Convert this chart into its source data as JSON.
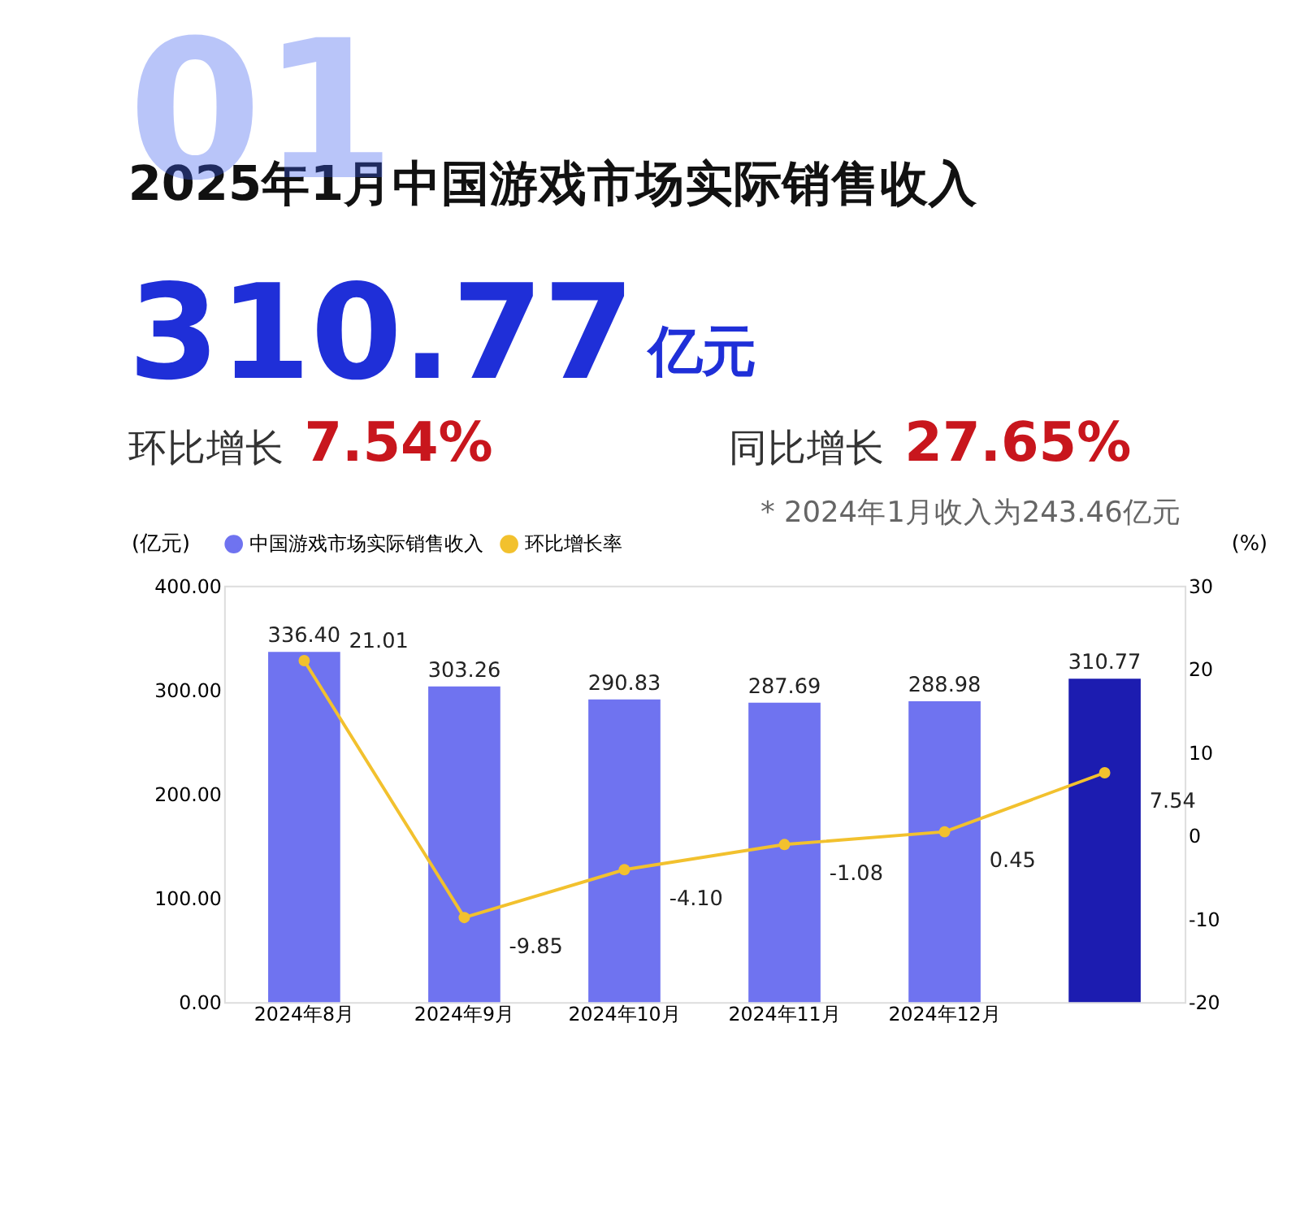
{
  "chart_data": {
    "type": "bar",
    "title": "2025年1月中国游戏市场实际销售收入",
    "annotations": [
      "01",
      "310.77",
      "亿元",
      "环比增长",
      "7.54%",
      "同比增长",
      "27.65%",
      "* 2024年1月收入为243.46亿元"
    ],
    "categories": [
      "2024年8月",
      "2024年9月",
      "2024年10月",
      "2024年11月",
      "2024年12月",
      null
    ],
    "series": [
      {
        "name": "中国游戏市场实际销售收入",
        "type": "bar",
        "color": "#6f73f0",
        "colors": [
          "#6f73f0",
          "#6f73f0",
          "#6f73f0",
          "#6f73f0",
          "#6f73f0",
          "#1c1cb0"
        ],
        "values": [
          336.4,
          303.26,
          290.83,
          287.69,
          288.98,
          310.77
        ],
        "value_labels": [
          "336.40",
          "303.26",
          "290.83",
          "287.69",
          "288.98",
          "310.77"
        ]
      },
      {
        "name": "环比增长率",
        "type": "line",
        "axis": "y2",
        "color": "#f2c12e",
        "values": [
          21.01,
          -9.85,
          -4.1,
          -1.08,
          0.45,
          7.54
        ],
        "value_labels": [
          "21.01",
          "-9.85",
          "-4.10",
          "-1.08",
          "0.45",
          "7.54"
        ]
      }
    ],
    "ylabel": "(亿元)",
    "y2label": "(%)",
    "ylim": [
      0,
      400
    ],
    "yticks": [
      {
        "value": 0,
        "label": "0.00"
      },
      {
        "value": 100,
        "label": "100.00"
      },
      {
        "value": 200,
        "label": "200.00"
      },
      {
        "value": 300,
        "label": "300.00"
      },
      {
        "value": 400,
        "label": "400.00"
      }
    ],
    "y2lim": [
      -20,
      30
    ],
    "y2ticks": [
      -20,
      -10,
      0,
      10,
      20,
      30
    ],
    "data_labels": true,
    "legend": "top",
    "grid": false,
    "marker": "circle",
    "line_style": "solid"
  }
}
